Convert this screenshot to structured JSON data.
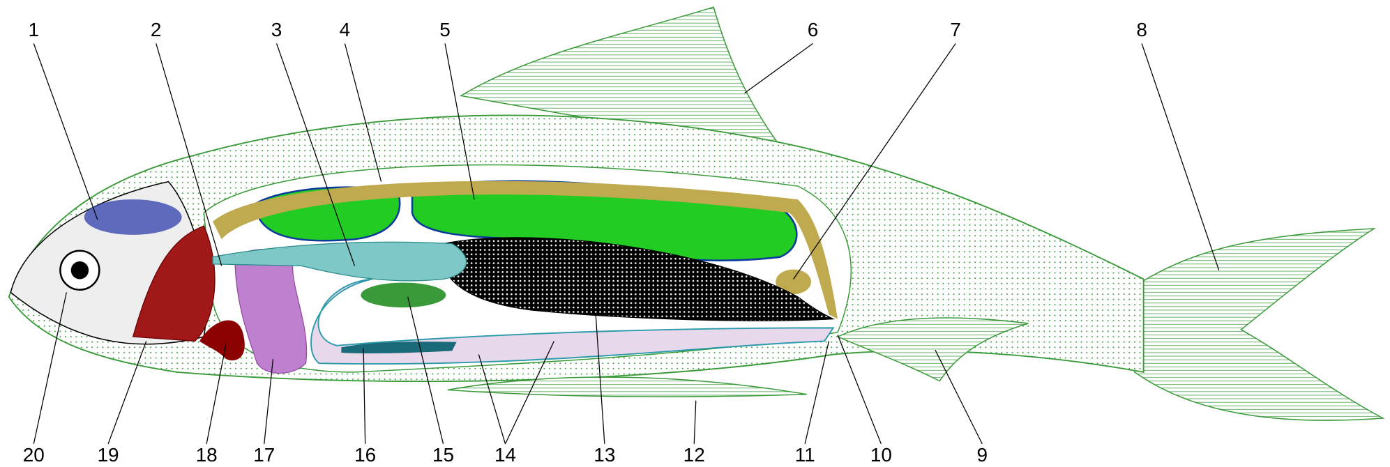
{
  "labels": [
    "1",
    "2",
    "3",
    "4",
    "5",
    "6",
    "7",
    "8",
    "9",
    "10",
    "11",
    "12",
    "13",
    "14",
    "15",
    "16",
    "17",
    "18",
    "19",
    "20"
  ]
}
